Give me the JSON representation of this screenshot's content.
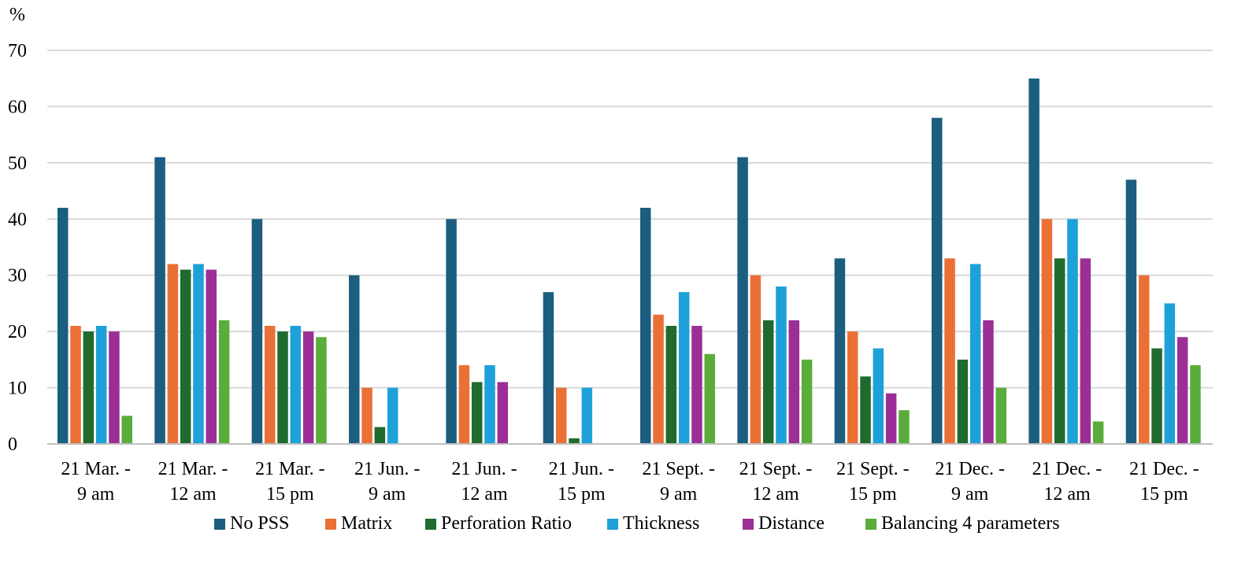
{
  "chart_data": {
    "type": "bar",
    "ylabel": "%",
    "ylim": [
      0,
      70
    ],
    "yticks": [
      0,
      10,
      20,
      30,
      40,
      50,
      60,
      70
    ],
    "grid": true,
    "legend_position": "bottom",
    "categories": [
      [
        "21 Mar. -",
        "9 am"
      ],
      [
        "21 Mar. -",
        "12 am"
      ],
      [
        "21 Mar. -",
        "15 pm"
      ],
      [
        "21 Jun. -",
        "9 am"
      ],
      [
        "21 Jun. -",
        "12 am"
      ],
      [
        "21 Jun. -",
        "15 pm"
      ],
      [
        "21 Sept. -",
        "9 am"
      ],
      [
        "21 Sept. -",
        "12 am"
      ],
      [
        "21 Sept. -",
        "15 pm"
      ],
      [
        "21 Dec. -",
        "9 am"
      ],
      [
        "21 Dec. -",
        "12 am"
      ],
      [
        "21 Dec. -",
        "15 pm"
      ]
    ],
    "series": [
      {
        "name": "No PSS",
        "color": "#1b5e80",
        "values": [
          42,
          51,
          40,
          30,
          40,
          27,
          42,
          51,
          33,
          58,
          65,
          47
        ]
      },
      {
        "name": "Matrix",
        "color": "#ea7035",
        "values": [
          21,
          32,
          21,
          10,
          14,
          10,
          23,
          30,
          20,
          33,
          40,
          30
        ]
      },
      {
        "name": "Perforation Ratio",
        "color": "#1e6b2d",
        "values": [
          20,
          31,
          20,
          3,
          11,
          1,
          21,
          22,
          12,
          15,
          33,
          17
        ]
      },
      {
        "name": "Thickness",
        "color": "#1da1d8",
        "values": [
          21,
          32,
          21,
          10,
          14,
          10,
          27,
          28,
          17,
          32,
          40,
          25
        ]
      },
      {
        "name": "Distance",
        "color": "#9b2f96",
        "values": [
          20,
          31,
          20,
          0,
          11,
          0,
          21,
          22,
          9,
          22,
          33,
          19
        ]
      },
      {
        "name": "Balancing 4 parameters",
        "color": "#5aad3a",
        "values": [
          5,
          22,
          19,
          0,
          0,
          0,
          16,
          15,
          6,
          10,
          4,
          14
        ]
      }
    ]
  }
}
